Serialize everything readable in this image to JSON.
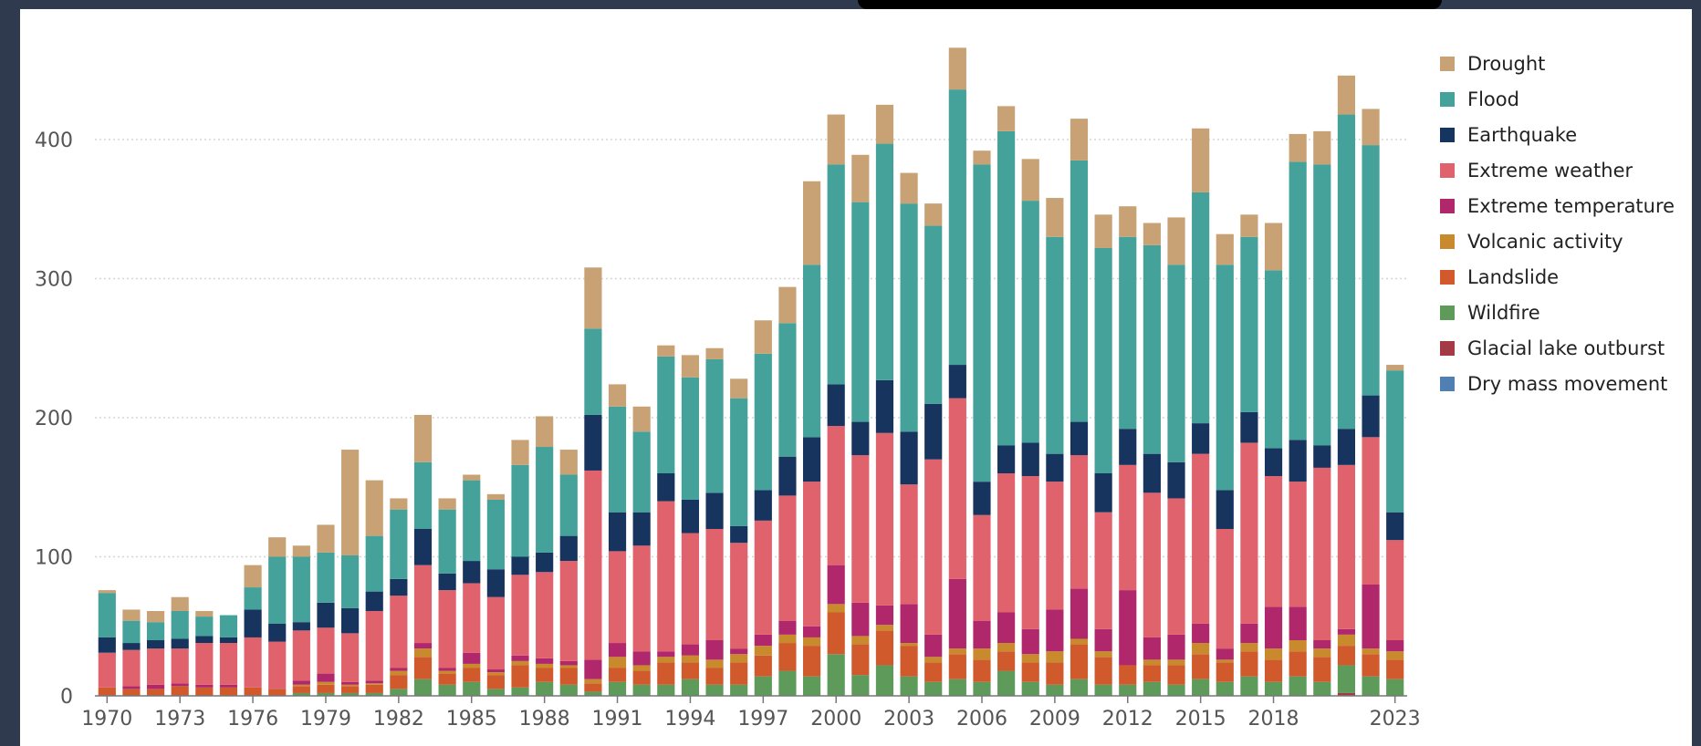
{
  "chart_data": {
    "type": "bar",
    "stacked": true,
    "title": "",
    "xlabel": "",
    "ylabel": "",
    "ylim": [
      0,
      470
    ],
    "yticks": [
      0,
      100,
      200,
      300,
      400
    ],
    "grid": "horizontal dotted",
    "legend_position": "right",
    "x_tick_labels": [
      "1970",
      "1973",
      "1976",
      "1979",
      "1982",
      "1985",
      "1988",
      "1991",
      "1994",
      "1997",
      "2000",
      "2003",
      "2006",
      "2009",
      "2012",
      "2015",
      "2018",
      "2023"
    ],
    "categories": [
      1970,
      1971,
      1972,
      1973,
      1974,
      1975,
      1976,
      1977,
      1978,
      1979,
      1980,
      1981,
      1982,
      1983,
      1984,
      1985,
      1986,
      1987,
      1988,
      1989,
      1990,
      1991,
      1992,
      1993,
      1994,
      1995,
      1996,
      1997,
      1998,
      1999,
      2000,
      2001,
      2002,
      2003,
      2004,
      2005,
      2006,
      2007,
      2008,
      2009,
      2010,
      2011,
      2012,
      2013,
      2014,
      2015,
      2016,
      2017,
      2018,
      2019,
      2020,
      2021,
      2022,
      2023
    ],
    "series": [
      {
        "name": "Dry mass movement",
        "color": "#4f7fb3",
        "values": [
          0,
          0,
          0,
          0,
          0,
          0,
          0,
          0,
          0,
          0,
          0,
          0,
          0,
          0,
          0,
          0,
          0,
          0,
          0,
          0,
          0,
          0,
          0,
          0,
          0,
          0,
          0,
          0,
          0,
          0,
          0,
          0,
          0,
          0,
          0,
          0,
          0,
          0,
          0,
          0,
          0,
          0,
          0,
          0,
          0,
          0,
          0,
          0,
          0,
          0,
          0,
          0,
          0,
          0
        ]
      },
      {
        "name": "Glacial lake outburst",
        "color": "#a33a45",
        "values": [
          0,
          0,
          0,
          0,
          0,
          0,
          0,
          0,
          0,
          0,
          0,
          0,
          0,
          0,
          0,
          0,
          0,
          0,
          0,
          0,
          0,
          0,
          0,
          0,
          0,
          0,
          0,
          0,
          0,
          0,
          0,
          0,
          0,
          0,
          0,
          0,
          0,
          0,
          0,
          0,
          0,
          0,
          0,
          0,
          0,
          0,
          0,
          0,
          0,
          0,
          0,
          2,
          0,
          0
        ]
      },
      {
        "name": "Wildfire",
        "color": "#5e9b5a",
        "values": [
          0,
          0,
          0,
          0,
          0,
          0,
          0,
          0,
          2,
          2,
          2,
          2,
          5,
          12,
          8,
          10,
          5,
          6,
          10,
          8,
          3,
          10,
          8,
          8,
          12,
          8,
          8,
          14,
          18,
          14,
          30,
          15,
          22,
          14,
          10,
          12,
          10,
          18,
          10,
          8,
          12,
          8,
          8,
          10,
          8,
          12,
          10,
          14,
          10,
          14,
          10,
          20,
          14,
          12
        ]
      },
      {
        "name": "Landslide",
        "color": "#d05a2c",
        "values": [
          6,
          5,
          5,
          7,
          6,
          6,
          6,
          5,
          5,
          6,
          5,
          6,
          10,
          16,
          8,
          10,
          10,
          16,
          10,
          12,
          6,
          10,
          10,
          16,
          12,
          12,
          16,
          15,
          20,
          22,
          30,
          22,
          25,
          22,
          14,
          18,
          16,
          14,
          14,
          16,
          25,
          20,
          14,
          12,
          14,
          18,
          14,
          18,
          16,
          18,
          18,
          14,
          16,
          14
        ]
      },
      {
        "name": "Volcanic activity",
        "color": "#c98a2e",
        "values": [
          0,
          0,
          0,
          0,
          0,
          0,
          0,
          0,
          1,
          2,
          1,
          1,
          3,
          6,
          2,
          3,
          2,
          3,
          3,
          2,
          3,
          8,
          4,
          4,
          5,
          6,
          6,
          7,
          6,
          6,
          6,
          6,
          4,
          2,
          4,
          4,
          8,
          6,
          6,
          8,
          4,
          4,
          0,
          4,
          4,
          8,
          2,
          6,
          8,
          8,
          6,
          8,
          4,
          6
        ]
      },
      {
        "name": "Extreme temperature",
        "color": "#b0286b",
        "values": [
          0,
          2,
          3,
          2,
          2,
          2,
          0,
          0,
          3,
          6,
          2,
          2,
          2,
          4,
          2,
          8,
          2,
          4,
          4,
          3,
          14,
          10,
          10,
          4,
          8,
          14,
          4,
          8,
          10,
          8,
          28,
          24,
          14,
          28,
          16,
          50,
          20,
          22,
          18,
          30,
          36,
          16,
          54,
          16,
          18,
          14,
          8,
          14,
          30,
          24,
          6,
          4,
          46,
          8
        ]
      },
      {
        "name": "Extreme weather",
        "color": "#e0626c",
        "values": [
          25,
          26,
          26,
          25,
          30,
          30,
          36,
          34,
          36,
          33,
          35,
          50,
          52,
          56,
          56,
          50,
          52,
          58,
          62,
          72,
          136,
          66,
          76,
          108,
          80,
          80,
          76,
          82,
          90,
          104,
          100,
          106,
          124,
          86,
          126,
          130,
          76,
          100,
          110,
          92,
          96,
          84,
          90,
          104,
          98,
          122,
          86,
          130,
          94,
          90,
          124,
          118,
          106,
          72
        ]
      },
      {
        "name": "Earthquake",
        "color": "#16345e",
        "values": [
          11,
          5,
          6,
          7,
          5,
          4,
          20,
          13,
          6,
          18,
          18,
          14,
          12,
          26,
          12,
          16,
          20,
          13,
          14,
          18,
          40,
          28,
          24,
          20,
          24,
          26,
          12,
          22,
          28,
          32,
          30,
          24,
          38,
          38,
          40,
          24,
          24,
          20,
          24,
          20,
          24,
          28,
          26,
          28,
          26,
          22,
          28,
          22,
          20,
          30,
          16,
          26,
          30,
          20
        ]
      },
      {
        "name": "Flood",
        "color": "#44a29a",
        "values": [
          32,
          16,
          13,
          20,
          14,
          16,
          16,
          48,
          47,
          36,
          38,
          40,
          50,
          48,
          46,
          58,
          50,
          66,
          76,
          44,
          62,
          76,
          58,
          84,
          88,
          96,
          92,
          98,
          96,
          124,
          158,
          158,
          170,
          164,
          128,
          198,
          228,
          226,
          174,
          156,
          188,
          162,
          138,
          150,
          142,
          166,
          162,
          126,
          128,
          200,
          202,
          226,
          180,
          102
        ]
      },
      {
        "name": "Drought",
        "color": "#c8a275",
        "values": [
          2,
          8,
          8,
          10,
          4,
          0,
          16,
          14,
          8,
          20,
          76,
          40,
          8,
          34,
          8,
          4,
          4,
          18,
          22,
          18,
          44,
          16,
          18,
          8,
          16,
          8,
          14,
          24,
          26,
          60,
          36,
          34,
          28,
          22,
          16,
          30,
          10,
          18,
          30,
          28,
          30,
          24,
          22,
          16,
          34,
          46,
          22,
          16,
          34,
          20,
          24,
          28,
          26,
          4
        ]
      }
    ]
  },
  "legend": {
    "items": [
      {
        "label": "Drought",
        "color": "#c8a275"
      },
      {
        "label": "Flood",
        "color": "#44a29a"
      },
      {
        "label": "Earthquake",
        "color": "#16345e"
      },
      {
        "label": "Extreme weather",
        "color": "#e0626c"
      },
      {
        "label": "Extreme temperature",
        "color": "#b0286b"
      },
      {
        "label": "Volcanic activity",
        "color": "#c98a2e"
      },
      {
        "label": "Landslide",
        "color": "#d05a2c"
      },
      {
        "label": "Wildfire",
        "color": "#5e9b5a"
      },
      {
        "label": "Glacial lake outburst",
        "color": "#a33a45"
      },
      {
        "label": "Dry mass movement",
        "color": "#4f7fb3"
      }
    ]
  }
}
